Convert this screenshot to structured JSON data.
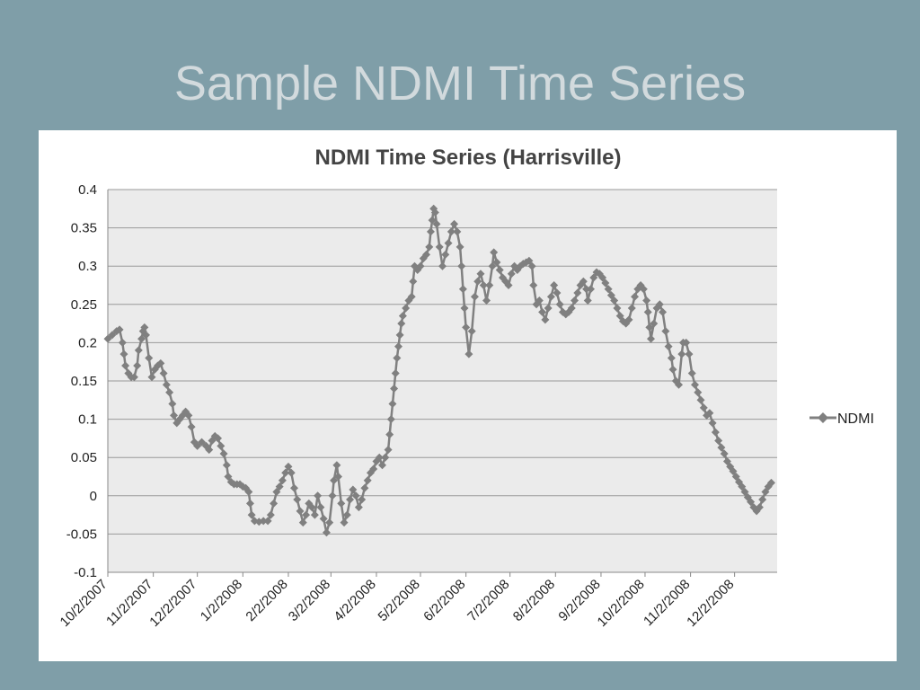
{
  "slide": {
    "title": "Sample NDMI Time Series"
  },
  "colors": {
    "background": "#7f9ea8",
    "plot_area": "#ebebeb",
    "series": "#808080",
    "title": "#d2dadd"
  },
  "chart_data": {
    "type": "line",
    "title": "NDMI  Time Series (Harrisville)",
    "xlabel": "",
    "ylabel": "",
    "xlim": [
      "2007-10-02",
      "2008-12-31"
    ],
    "ylim": [
      -0.1,
      0.4
    ],
    "yticks": [
      0.4,
      0.35,
      0.3,
      0.25,
      0.2,
      0.15,
      0.1,
      0.05,
      0,
      -0.05,
      -0.1
    ],
    "ytick_labels": [
      "0.4",
      "0.35",
      "0.3",
      "0.25",
      "0.2",
      "0.15",
      "0.1",
      "0.05",
      "0",
      "-0.05",
      "-0.1"
    ],
    "xticks": [
      "2007-10-02",
      "2007-11-02",
      "2007-12-02",
      "2008-01-02",
      "2008-02-02",
      "2008-03-02",
      "2008-04-02",
      "2008-05-02",
      "2008-06-02",
      "2008-07-02",
      "2008-08-02",
      "2008-09-02",
      "2008-10-02",
      "2008-11-02",
      "2008-12-02"
    ],
    "xtick_labels": [
      "10/2/2007",
      "11/2/2007",
      "12/2/2007",
      "1/2/2008",
      "2/2/2008",
      "3/2/2008",
      "4/2/2008",
      "5/2/2008",
      "6/2/2008",
      "7/2/2008",
      "8/2/2008",
      "9/2/2008",
      "10/2/2008",
      "11/2/2008",
      "12/2/2008"
    ],
    "grid": true,
    "legend": "right",
    "series": [
      {
        "name": "NDMI",
        "marker": "diamond",
        "points": [
          [
            "2007-10-02",
            0.205
          ],
          [
            "2007-10-05",
            0.21
          ],
          [
            "2007-10-08",
            0.215
          ],
          [
            "2007-10-10",
            0.217
          ],
          [
            "2007-10-12",
            0.2
          ],
          [
            "2007-10-13",
            0.185
          ],
          [
            "2007-10-14",
            0.17
          ],
          [
            "2007-10-16",
            0.16
          ],
          [
            "2007-10-18",
            0.155
          ],
          [
            "2007-10-20",
            0.155
          ],
          [
            "2007-10-22",
            0.17
          ],
          [
            "2007-10-23",
            0.19
          ],
          [
            "2007-10-25",
            0.205
          ],
          [
            "2007-10-26",
            0.215
          ],
          [
            "2007-10-27",
            0.22
          ],
          [
            "2007-10-28",
            0.21
          ],
          [
            "2007-10-30",
            0.18
          ],
          [
            "2007-11-01",
            0.155
          ],
          [
            "2007-11-03",
            0.165
          ],
          [
            "2007-11-05",
            0.17
          ],
          [
            "2007-11-07",
            0.173
          ],
          [
            "2007-11-09",
            0.16
          ],
          [
            "2007-11-11",
            0.145
          ],
          [
            "2007-11-13",
            0.135
          ],
          [
            "2007-11-15",
            0.12
          ],
          [
            "2007-11-16",
            0.105
          ],
          [
            "2007-11-18",
            0.095
          ],
          [
            "2007-11-20",
            0.1
          ],
          [
            "2007-11-22",
            0.105
          ],
          [
            "2007-11-24",
            0.11
          ],
          [
            "2007-11-26",
            0.105
          ],
          [
            "2007-11-28",
            0.09
          ],
          [
            "2007-11-30",
            0.07
          ],
          [
            "2007-12-02",
            0.065
          ],
          [
            "2007-12-05",
            0.07
          ],
          [
            "2007-12-08",
            0.065
          ],
          [
            "2007-12-10",
            0.06
          ],
          [
            "2007-12-12",
            0.072
          ],
          [
            "2007-12-14",
            0.078
          ],
          [
            "2007-12-16",
            0.075
          ],
          [
            "2007-12-18",
            0.065
          ],
          [
            "2007-12-20",
            0.055
          ],
          [
            "2007-12-22",
            0.04
          ],
          [
            "2007-12-23",
            0.025
          ],
          [
            "2007-12-25",
            0.018
          ],
          [
            "2007-12-27",
            0.015
          ],
          [
            "2007-12-29",
            0.015
          ],
          [
            "2007-12-31",
            0.015
          ],
          [
            "2008-01-02",
            0.012
          ],
          [
            "2008-01-04",
            0.01
          ],
          [
            "2008-01-06",
            0.005
          ],
          [
            "2008-01-07",
            -0.01
          ],
          [
            "2008-01-08",
            -0.025
          ],
          [
            "2008-01-10",
            -0.033
          ],
          [
            "2008-01-13",
            -0.034
          ],
          [
            "2008-01-16",
            -0.033
          ],
          [
            "2008-01-19",
            -0.033
          ],
          [
            "2008-01-21",
            -0.025
          ],
          [
            "2008-01-23",
            -0.01
          ],
          [
            "2008-01-25",
            0.005
          ],
          [
            "2008-01-27",
            0.012
          ],
          [
            "2008-01-29",
            0.02
          ],
          [
            "2008-01-31",
            0.03
          ],
          [
            "2008-02-02",
            0.038
          ],
          [
            "2008-02-04",
            0.03
          ],
          [
            "2008-02-06",
            0.01
          ],
          [
            "2008-02-08",
            -0.005
          ],
          [
            "2008-02-10",
            -0.02
          ],
          [
            "2008-02-12",
            -0.035
          ],
          [
            "2008-02-14",
            -0.025
          ],
          [
            "2008-02-16",
            -0.01
          ],
          [
            "2008-02-18",
            -0.015
          ],
          [
            "2008-02-20",
            -0.025
          ],
          [
            "2008-02-22",
            0.0
          ],
          [
            "2008-02-24",
            -0.015
          ],
          [
            "2008-02-26",
            -0.03
          ],
          [
            "2008-02-28",
            -0.048
          ],
          [
            "2008-03-01",
            -0.035
          ],
          [
            "2008-03-03",
            0.0
          ],
          [
            "2008-03-04",
            0.02
          ],
          [
            "2008-03-06",
            0.04
          ],
          [
            "2008-03-07",
            0.025
          ],
          [
            "2008-03-09",
            -0.01
          ],
          [
            "2008-03-11",
            -0.035
          ],
          [
            "2008-03-13",
            -0.025
          ],
          [
            "2008-03-15",
            -0.005
          ],
          [
            "2008-03-17",
            0.008
          ],
          [
            "2008-03-19",
            0.0
          ],
          [
            "2008-03-21",
            -0.015
          ],
          [
            "2008-03-23",
            -0.005
          ],
          [
            "2008-03-25",
            0.01
          ],
          [
            "2008-03-27",
            0.02
          ],
          [
            "2008-03-29",
            0.03
          ],
          [
            "2008-03-31",
            0.035
          ],
          [
            "2008-04-02",
            0.045
          ],
          [
            "2008-04-04",
            0.05
          ],
          [
            "2008-04-06",
            0.04
          ],
          [
            "2008-04-08",
            0.05
          ],
          [
            "2008-04-10",
            0.06
          ],
          [
            "2008-04-11",
            0.08
          ],
          [
            "2008-04-12",
            0.1
          ],
          [
            "2008-04-13",
            0.12
          ],
          [
            "2008-04-14",
            0.14
          ],
          [
            "2008-04-15",
            0.16
          ],
          [
            "2008-04-16",
            0.18
          ],
          [
            "2008-04-17",
            0.195
          ],
          [
            "2008-04-18",
            0.21
          ],
          [
            "2008-04-19",
            0.225
          ],
          [
            "2008-04-20",
            0.235
          ],
          [
            "2008-04-22",
            0.245
          ],
          [
            "2008-04-24",
            0.255
          ],
          [
            "2008-04-26",
            0.26
          ],
          [
            "2008-04-27",
            0.28
          ],
          [
            "2008-04-28",
            0.3
          ],
          [
            "2008-04-30",
            0.295
          ],
          [
            "2008-05-02",
            0.3
          ],
          [
            "2008-05-04",
            0.31
          ],
          [
            "2008-05-06",
            0.315
          ],
          [
            "2008-05-08",
            0.325
          ],
          [
            "2008-05-09",
            0.345
          ],
          [
            "2008-05-10",
            0.36
          ],
          [
            "2008-05-11",
            0.375
          ],
          [
            "2008-05-12",
            0.37
          ],
          [
            "2008-05-13",
            0.355
          ],
          [
            "2008-05-15",
            0.325
          ],
          [
            "2008-05-17",
            0.3
          ],
          [
            "2008-05-19",
            0.315
          ],
          [
            "2008-05-21",
            0.33
          ],
          [
            "2008-05-23",
            0.345
          ],
          [
            "2008-05-25",
            0.355
          ],
          [
            "2008-05-27",
            0.345
          ],
          [
            "2008-05-29",
            0.325
          ],
          [
            "2008-05-30",
            0.3
          ],
          [
            "2008-05-31",
            0.27
          ],
          [
            "2008-06-01",
            0.245
          ],
          [
            "2008-06-02",
            0.22
          ],
          [
            "2008-06-04",
            0.185
          ],
          [
            "2008-06-06",
            0.215
          ],
          [
            "2008-06-08",
            0.26
          ],
          [
            "2008-06-10",
            0.28
          ],
          [
            "2008-06-12",
            0.29
          ],
          [
            "2008-06-14",
            0.275
          ],
          [
            "2008-06-16",
            0.255
          ],
          [
            "2008-06-18",
            0.275
          ],
          [
            "2008-06-20",
            0.3
          ],
          [
            "2008-06-21",
            0.318
          ],
          [
            "2008-06-23",
            0.305
          ],
          [
            "2008-06-25",
            0.295
          ],
          [
            "2008-06-27",
            0.285
          ],
          [
            "2008-06-29",
            0.28
          ],
          [
            "2008-07-01",
            0.275
          ],
          [
            "2008-07-03",
            0.29
          ],
          [
            "2008-07-05",
            0.3
          ],
          [
            "2008-07-07",
            0.295
          ],
          [
            "2008-07-09",
            0.3
          ],
          [
            "2008-07-11",
            0.303
          ],
          [
            "2008-07-13",
            0.305
          ],
          [
            "2008-07-15",
            0.307
          ],
          [
            "2008-07-17",
            0.3
          ],
          [
            "2008-07-18",
            0.275
          ],
          [
            "2008-07-20",
            0.25
          ],
          [
            "2008-07-22",
            0.255
          ],
          [
            "2008-07-24",
            0.24
          ],
          [
            "2008-07-26",
            0.23
          ],
          [
            "2008-07-28",
            0.245
          ],
          [
            "2008-07-30",
            0.26
          ],
          [
            "2008-08-01",
            0.275
          ],
          [
            "2008-08-03",
            0.265
          ],
          [
            "2008-08-05",
            0.25
          ],
          [
            "2008-08-07",
            0.24
          ],
          [
            "2008-08-09",
            0.237
          ],
          [
            "2008-08-11",
            0.24
          ],
          [
            "2008-08-13",
            0.245
          ],
          [
            "2008-08-15",
            0.255
          ],
          [
            "2008-08-17",
            0.265
          ],
          [
            "2008-08-19",
            0.275
          ],
          [
            "2008-08-21",
            0.28
          ],
          [
            "2008-08-23",
            0.27
          ],
          [
            "2008-08-24",
            0.255
          ],
          [
            "2008-08-26",
            0.27
          ],
          [
            "2008-08-28",
            0.285
          ],
          [
            "2008-08-30",
            0.292
          ],
          [
            "2008-09-01",
            0.29
          ],
          [
            "2008-09-03",
            0.285
          ],
          [
            "2008-09-05",
            0.278
          ],
          [
            "2008-09-07",
            0.27
          ],
          [
            "2008-09-09",
            0.262
          ],
          [
            "2008-09-11",
            0.255
          ],
          [
            "2008-09-13",
            0.245
          ],
          [
            "2008-09-15",
            0.235
          ],
          [
            "2008-09-17",
            0.228
          ],
          [
            "2008-09-19",
            0.225
          ],
          [
            "2008-09-21",
            0.23
          ],
          [
            "2008-09-23",
            0.245
          ],
          [
            "2008-09-25",
            0.26
          ],
          [
            "2008-09-27",
            0.27
          ],
          [
            "2008-09-29",
            0.275
          ],
          [
            "2008-10-01",
            0.27
          ],
          [
            "2008-10-03",
            0.255
          ],
          [
            "2008-10-04",
            0.24
          ],
          [
            "2008-10-05",
            0.22
          ],
          [
            "2008-10-06",
            0.205
          ],
          [
            "2008-10-08",
            0.225
          ],
          [
            "2008-10-10",
            0.245
          ],
          [
            "2008-10-12",
            0.25
          ],
          [
            "2008-10-14",
            0.24
          ],
          [
            "2008-10-16",
            0.215
          ],
          [
            "2008-10-18",
            0.195
          ],
          [
            "2008-10-20",
            0.18
          ],
          [
            "2008-10-21",
            0.165
          ],
          [
            "2008-10-23",
            0.15
          ],
          [
            "2008-10-25",
            0.145
          ],
          [
            "2008-10-27",
            0.185
          ],
          [
            "2008-10-28",
            0.2
          ],
          [
            "2008-10-30",
            0.2
          ],
          [
            "2008-11-01",
            0.185
          ],
          [
            "2008-11-03",
            0.16
          ],
          [
            "2008-11-05",
            0.145
          ],
          [
            "2008-11-07",
            0.135
          ],
          [
            "2008-11-09",
            0.125
          ],
          [
            "2008-11-11",
            0.115
          ],
          [
            "2008-11-13",
            0.105
          ],
          [
            "2008-11-15",
            0.108
          ],
          [
            "2008-11-17",
            0.095
          ],
          [
            "2008-11-19",
            0.083
          ],
          [
            "2008-11-21",
            0.072
          ],
          [
            "2008-11-23",
            0.063
          ],
          [
            "2008-11-25",
            0.055
          ],
          [
            "2008-11-27",
            0.045
          ],
          [
            "2008-11-29",
            0.038
          ],
          [
            "2008-12-01",
            0.032
          ],
          [
            "2008-12-03",
            0.025
          ],
          [
            "2008-12-05",
            0.018
          ],
          [
            "2008-12-07",
            0.012
          ],
          [
            "2008-12-09",
            0.005
          ],
          [
            "2008-12-11",
            -0.002
          ],
          [
            "2008-12-13",
            -0.008
          ],
          [
            "2008-12-15",
            -0.015
          ],
          [
            "2008-12-17",
            -0.02
          ],
          [
            "2008-12-19",
            -0.015
          ],
          [
            "2008-12-21",
            -0.005
          ],
          [
            "2008-12-23",
            0.005
          ],
          [
            "2008-12-25",
            0.012
          ],
          [
            "2008-12-27",
            0.017
          ]
        ]
      }
    ]
  }
}
